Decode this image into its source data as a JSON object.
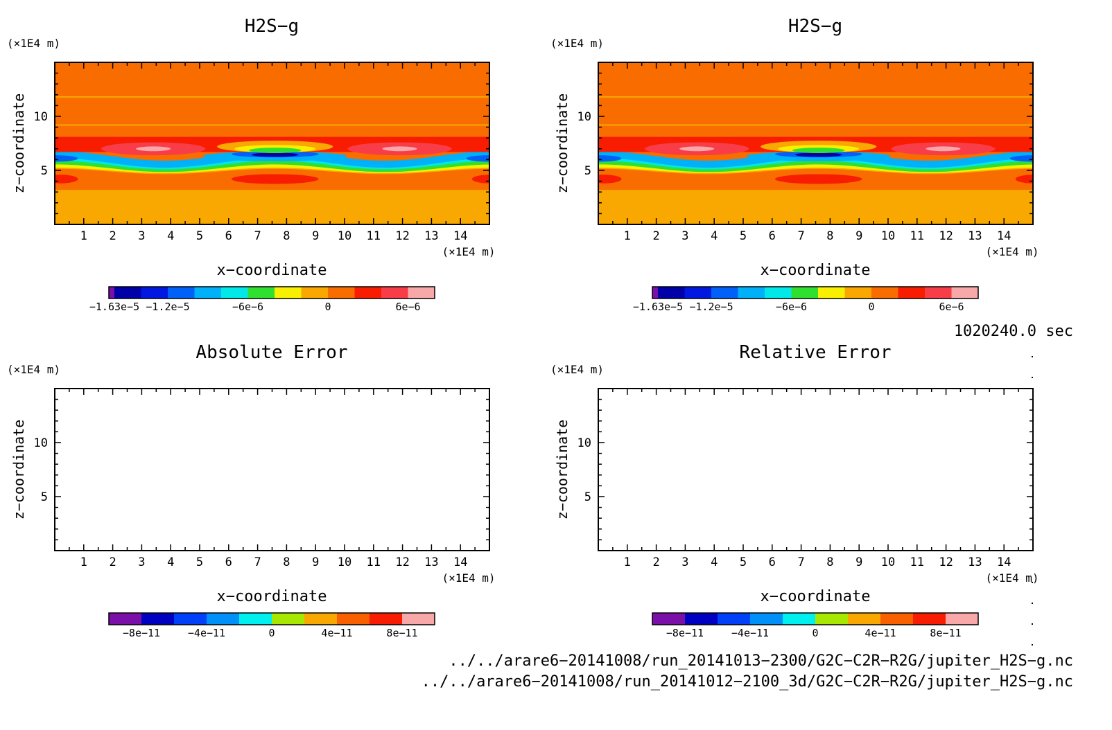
{
  "chart_data": [
    {
      "type": "heatmap",
      "title": "H2S−g",
      "xlabel": "x−coordinate",
      "ylabel": "z−coordinate",
      "x_unit": "(×1E4 m)",
      "z_unit": "(×1E4 m)",
      "xlim": [
        0,
        15
      ],
      "zlim": [
        0,
        15
      ],
      "x_ticks": [
        "1",
        "2",
        "3",
        "4",
        "5",
        "6",
        "7",
        "8",
        "9",
        "10",
        "11",
        "12",
        "13",
        "14"
      ],
      "z_ticks": [
        "5",
        "10"
      ],
      "colorbar_labels": [
        "−1.63e−5",
        "−1.2e−5",
        "−6e−6",
        "0",
        "6e−6"
      ],
      "colorbar_values": [
        -1.63e-05,
        -1.2e-05,
        -6e-06,
        0,
        6e-06
      ],
      "colorbar_colors": [
        "#7a10a8",
        "#0000a8",
        "#0018e0",
        "#0060f8",
        "#00b0f8",
        "#00e8e8",
        "#30e030",
        "#f8f000",
        "#f8a800",
        "#f86c00",
        "#f81c00",
        "#f83c48",
        "#f8a8a8"
      ],
      "filled": true
    },
    {
      "type": "heatmap",
      "title": "H2S−g",
      "xlabel": "x−coordinate",
      "ylabel": "z−coordinate",
      "x_unit": "(×1E4 m)",
      "z_unit": "(×1E4 m)",
      "xlim": [
        0,
        15
      ],
      "zlim": [
        0,
        15
      ],
      "x_ticks": [
        "1",
        "2",
        "3",
        "4",
        "5",
        "6",
        "7",
        "8",
        "9",
        "10",
        "11",
        "12",
        "13",
        "14"
      ],
      "z_ticks": [
        "5",
        "10"
      ],
      "colorbar_labels": [
        "−1.63e−5",
        "−1.2e−5",
        "−6e−6",
        "0",
        "6e−6"
      ],
      "colorbar_values": [
        -1.63e-05,
        -1.2e-05,
        -6e-06,
        0,
        6e-06
      ],
      "colorbar_colors": [
        "#7a10a8",
        "#0000a8",
        "#0018e0",
        "#0060f8",
        "#00b0f8",
        "#00e8e8",
        "#30e030",
        "#f8f000",
        "#f8a800",
        "#f86c00",
        "#f81c00",
        "#f83c48",
        "#f8a8a8"
      ],
      "filled": true
    },
    {
      "type": "heatmap",
      "title": "Absolute Error",
      "xlabel": "x−coordinate",
      "ylabel": "z−coordinate",
      "x_unit": "(×1E4 m)",
      "z_unit": "(×1E4 m)",
      "xlim": [
        0,
        15
      ],
      "zlim": [
        0,
        15
      ],
      "x_ticks": [
        "1",
        "2",
        "3",
        "4",
        "5",
        "6",
        "7",
        "8",
        "9",
        "10",
        "11",
        "12",
        "13",
        "14"
      ],
      "z_ticks": [
        "5",
        "10"
      ],
      "colorbar_labels": [
        "−8e−11",
        "−4e−11",
        "0",
        "4e−11",
        "8e−11"
      ],
      "colorbar_values": [
        -8e-11,
        -4e-11,
        0,
        4e-11,
        8e-11
      ],
      "colorbar_colors": [
        "#7a10a8",
        "#0000c0",
        "#0040f8",
        "#0090f8",
        "#00f0f0",
        "#a8e800",
        "#f8a800",
        "#f86000",
        "#f81c00",
        "#f8a8a8"
      ],
      "filled": false
    },
    {
      "type": "heatmap",
      "title": "Relative Error",
      "xlabel": "x−coordinate",
      "ylabel": "z−coordinate",
      "x_unit": "(×1E4 m)",
      "z_unit": "(×1E4 m)",
      "xlim": [
        0,
        15
      ],
      "zlim": [
        0,
        15
      ],
      "x_ticks": [
        "1",
        "2",
        "3",
        "4",
        "5",
        "6",
        "7",
        "8",
        "9",
        "10",
        "11",
        "12",
        "13",
        "14"
      ],
      "z_ticks": [
        "5",
        "10"
      ],
      "colorbar_labels": [
        "−8e−11",
        "−4e−11",
        "0",
        "4e−11",
        "8e−11"
      ],
      "colorbar_values": [
        -8e-11,
        -4e-11,
        0,
        4e-11,
        8e-11
      ],
      "colorbar_colors": [
        "#7a10a8",
        "#0000c0",
        "#0040f8",
        "#0090f8",
        "#00f0f0",
        "#a8e800",
        "#f8a800",
        "#f86000",
        "#f81c00",
        "#f8a8a8"
      ],
      "filled": false
    }
  ],
  "time_label": "1020240.0 sec",
  "files": [
    "../../arare6−20141008/run_20141013−2300/G2C−C2R−R2G/jupiter_H2S−g.nc",
    "../../arare6−20141008/run_20141012−2100_3d/G2C−C2R−R2G/jupiter_H2S−g.nc"
  ]
}
